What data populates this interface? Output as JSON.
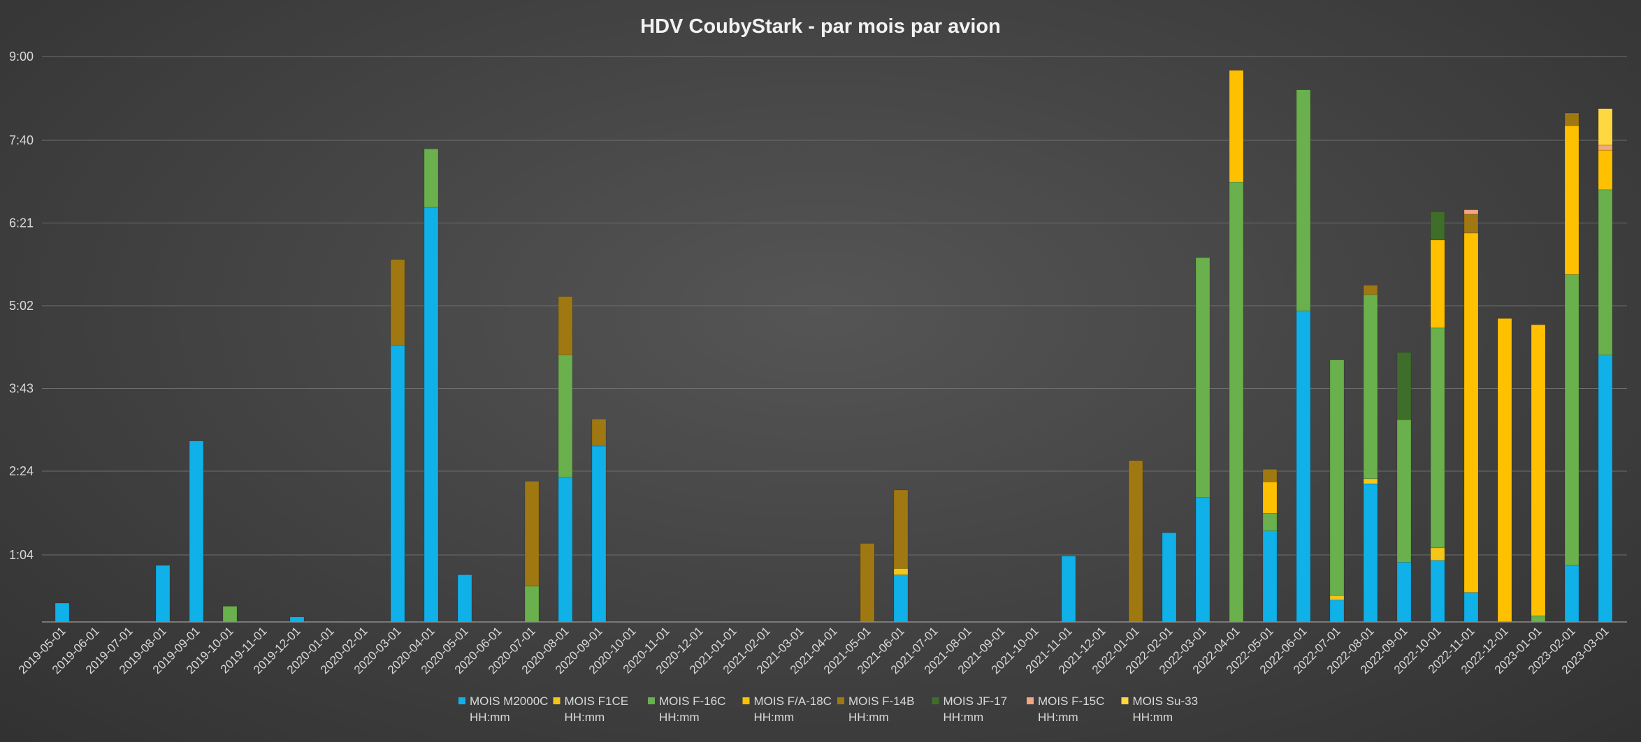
{
  "chart_data": {
    "type": "bar",
    "stacked": true,
    "title": "HDV CoubyStark - par mois par avion",
    "xlabel": "",
    "ylabel": "",
    "y_unit": "hours",
    "ylim": [
      0,
      9.3
    ],
    "yticks": [
      {
        "value": 1.0667,
        "label": "1:04"
      },
      {
        "value": 2.4,
        "label": "2:24"
      },
      {
        "value": 3.7167,
        "label": "3:43"
      },
      {
        "value": 5.0333,
        "label": "5:02"
      },
      {
        "value": 6.35,
        "label": "6:21"
      },
      {
        "value": 7.6667,
        "label": "7:40"
      },
      {
        "value": 9.0,
        "label": "9:00"
      }
    ],
    "grid": true,
    "legend_position": "bottom",
    "categories": [
      "2019-05-01",
      "2019-06-01",
      "2019-07-01",
      "2019-08-01",
      "2019-09-01",
      "2019-10-01",
      "2019-11-01",
      "2019-12-01",
      "2020-01-01",
      "2020-02-01",
      "2020-03-01",
      "2020-04-01",
      "2020-05-01",
      "2020-06-01",
      "2020-07-01",
      "2020-08-01",
      "2020-09-01",
      "2020-10-01",
      "2020-11-01",
      "2020-12-01",
      "2021-01-01",
      "2021-02-01",
      "2021-03-01",
      "2021-04-01",
      "2021-05-01",
      "2021-06-01",
      "2021-07-01",
      "2021-08-01",
      "2021-09-01",
      "2021-10-01",
      "2021-11-01",
      "2021-12-01",
      "2022-01-01",
      "2022-02-01",
      "2022-03-01",
      "2022-04-01",
      "2022-05-01",
      "2022-06-01",
      "2022-07-01",
      "2022-08-01",
      "2022-09-01",
      "2022-10-01",
      "2022-11-01",
      "2022-12-01",
      "2023-01-01",
      "2023-02-01",
      "2023-03-01"
    ],
    "series": [
      {
        "name": "MOIS M2000C",
        "name_line2": "HH:mm",
        "color": "#10b0e8",
        "values": [
          0.3,
          0,
          0,
          0.9,
          2.88,
          0,
          0,
          0.08,
          0,
          0,
          4.4,
          6.6,
          0.75,
          0,
          0,
          2.3,
          2.8,
          0,
          0,
          0,
          0,
          0,
          0,
          0,
          0,
          0.75,
          0,
          0,
          0,
          0,
          1.05,
          0,
          0,
          1.42,
          1.98,
          0,
          1.45,
          4.95,
          0.35,
          2.2,
          0.95,
          0.98,
          0.47,
          0,
          0,
          0.9,
          4.25
        ]
      },
      {
        "name": "MOIS F1CE",
        "name_line2": "HH:mm",
        "color": "#f5c518",
        "values": [
          0,
          0,
          0,
          0,
          0,
          0,
          0,
          0,
          0,
          0,
          0,
          0,
          0,
          0,
          0,
          0,
          0,
          0,
          0,
          0,
          0,
          0,
          0,
          0,
          0,
          0.1,
          0,
          0,
          0,
          0,
          0,
          0,
          0,
          0,
          0,
          0,
          0,
          0,
          0.07,
          0.08,
          0,
          0.2,
          0,
          0,
          0,
          0,
          0
        ]
      },
      {
        "name": "MOIS F-16C",
        "name_line2": "HH:mm",
        "color": "#6ab04c",
        "values": [
          0,
          0,
          0,
          0,
          0,
          0.25,
          0,
          0,
          0,
          0,
          0,
          0.93,
          0,
          0,
          0.57,
          1.95,
          0,
          0,
          0,
          0,
          0,
          0,
          0,
          0,
          0,
          0,
          0,
          0,
          0,
          0,
          0,
          0,
          0,
          0,
          3.82,
          7.0,
          0.28,
          3.52,
          3.75,
          2.93,
          2.27,
          3.5,
          0,
          0,
          0.1,
          4.63,
          2.63
        ]
      },
      {
        "name": "MOIS F/A-18C",
        "name_line2": "HH:mm",
        "color": "#ffc000",
        "values": [
          0,
          0,
          0,
          0,
          0,
          0,
          0,
          0,
          0,
          0,
          0,
          0,
          0,
          0,
          0,
          0,
          0,
          0,
          0,
          0,
          0,
          0,
          0,
          0,
          0,
          0,
          0,
          0,
          0,
          0,
          0,
          0,
          0,
          0,
          0,
          1.78,
          0.5,
          0,
          0,
          0,
          0,
          1.4,
          5.72,
          4.83,
          4.63,
          2.37,
          0.63
        ]
      },
      {
        "name": "MOIS F-14B",
        "name_line2": "HH:mm",
        "color": "#a07812",
        "values": [
          0,
          0,
          0,
          0,
          0,
          0,
          0,
          0,
          0,
          0,
          1.37,
          0,
          0,
          0,
          1.67,
          0.93,
          0.43,
          0,
          0,
          0,
          0,
          0,
          0,
          0,
          1.25,
          1.25,
          0,
          0,
          0,
          0,
          0,
          0,
          2.57,
          0,
          0,
          0,
          0.2,
          0,
          0,
          0.15,
          0,
          0,
          0.3,
          0,
          0,
          0.2,
          0
        ]
      },
      {
        "name": "MOIS JF-17",
        "name_line2": "HH:mm",
        "color": "#3e6e2a",
        "values": [
          0,
          0,
          0,
          0,
          0,
          0,
          0,
          0,
          0,
          0,
          0,
          0,
          0,
          0,
          0,
          0,
          0,
          0,
          0,
          0,
          0,
          0,
          0,
          0,
          0,
          0,
          0,
          0,
          0,
          0,
          0,
          0,
          0,
          0,
          0,
          0,
          0,
          0,
          0,
          0,
          1.07,
          0.45,
          0,
          0,
          0,
          0,
          0
        ]
      },
      {
        "name": "MOIS F-15C",
        "name_line2": "HH:mm",
        "color": "#f4a582",
        "values": [
          0,
          0,
          0,
          0,
          0,
          0,
          0,
          0,
          0,
          0,
          0,
          0,
          0,
          0,
          0,
          0,
          0,
          0,
          0,
          0,
          0,
          0,
          0,
          0,
          0,
          0,
          0,
          0,
          0,
          0,
          0,
          0,
          0,
          0,
          0,
          0,
          0,
          0,
          0,
          0,
          0,
          0,
          0.07,
          0,
          0,
          0,
          0.08
        ]
      },
      {
        "name": "MOIS Su-33",
        "name_line2": "HH:mm",
        "color": "#ffd740",
        "values": [
          0,
          0,
          0,
          0,
          0,
          0,
          0,
          0,
          0,
          0,
          0,
          0,
          0,
          0,
          0,
          0,
          0,
          0,
          0,
          0,
          0,
          0,
          0,
          0,
          0,
          0,
          0,
          0,
          0,
          0,
          0,
          0,
          0,
          0,
          0,
          0,
          0,
          0,
          0,
          0,
          0,
          0,
          0,
          0,
          0,
          0,
          0.58
        ]
      }
    ]
  }
}
